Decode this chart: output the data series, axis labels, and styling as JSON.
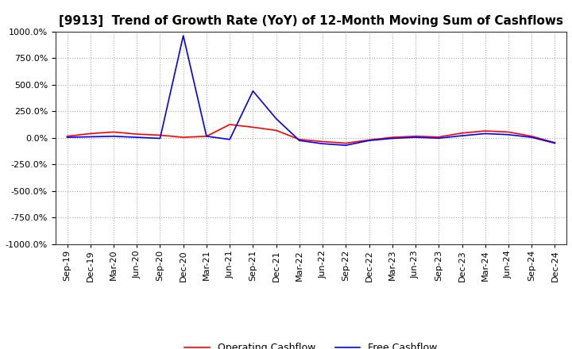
{
  "title": "[9913]  Trend of Growth Rate (YoY) of 12-Month Moving Sum of Cashflows",
  "ylim": [
    -1000,
    1000
  ],
  "yticks": [
    -1000,
    -750,
    -500,
    -250,
    0,
    250,
    500,
    750,
    1000
  ],
  "background_color": "#ffffff",
  "grid_color": "#aaaaaa",
  "x_labels": [
    "Sep-19",
    "Dec-19",
    "Mar-20",
    "Jun-20",
    "Sep-20",
    "Dec-20",
    "Mar-21",
    "Jun-21",
    "Sep-21",
    "Dec-21",
    "Mar-22",
    "Jun-22",
    "Sep-22",
    "Dec-22",
    "Mar-23",
    "Jun-23",
    "Sep-23",
    "Dec-23",
    "Mar-24",
    "Jun-24",
    "Sep-24",
    "Dec-24"
  ],
  "operating_cashflow": [
    15,
    40,
    55,
    35,
    25,
    5,
    15,
    125,
    100,
    70,
    -15,
    -35,
    -50,
    -20,
    5,
    15,
    8,
    45,
    65,
    55,
    15,
    -45
  ],
  "free_cashflow": [
    5,
    10,
    15,
    5,
    -5,
    960,
    15,
    -15,
    440,
    180,
    -25,
    -55,
    -70,
    -25,
    -5,
    5,
    -3,
    20,
    40,
    30,
    5,
    -50
  ],
  "op_color": "#ff0000",
  "free_color": "#0000ff",
  "title_fontsize": 11,
  "legend_fontsize": 9,
  "tick_fontsize": 8
}
